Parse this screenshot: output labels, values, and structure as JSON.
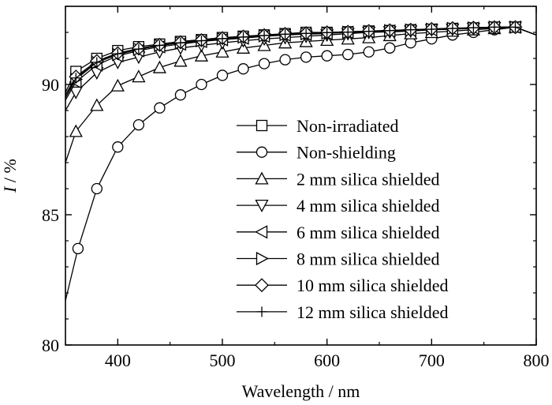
{
  "chart_data": {
    "type": "line",
    "xlabel": "Wavelength / nm",
    "ylabel_var": "I",
    "ylabel_unit": " / %",
    "xlim": [
      350,
      800
    ],
    "ylim": [
      80,
      93
    ],
    "x_ticks": [
      400,
      500,
      600,
      700,
      800
    ],
    "y_ticks": [
      80,
      85,
      90
    ],
    "grid": false,
    "legend_position": "center-right",
    "series": [
      {
        "name": "Non-irradiated",
        "marker": "square",
        "x": [
          350,
          360,
          380,
          400,
          420,
          440,
          460,
          480,
          500,
          520,
          540,
          560,
          580,
          600,
          620,
          640,
          660,
          680,
          700,
          720,
          740,
          760,
          780,
          800
        ],
        "y": [
          89.7,
          90.5,
          91.0,
          91.3,
          91.45,
          91.55,
          91.65,
          91.72,
          91.8,
          91.85,
          91.9,
          91.95,
          92.0,
          92.0,
          92.02,
          92.05,
          92.07,
          92.1,
          92.12,
          92.15,
          92.17,
          92.2,
          92.2,
          91.9
        ]
      },
      {
        "name": "Non-shielding",
        "marker": "circle",
        "x": [
          350,
          362,
          380,
          400,
          420,
          440,
          460,
          480,
          500,
          520,
          540,
          560,
          580,
          600,
          620,
          640,
          660,
          680,
          700,
          720,
          740,
          760,
          780,
          800
        ],
        "y": [
          81.7,
          83.7,
          86.0,
          87.6,
          88.45,
          89.1,
          89.6,
          90.0,
          90.35,
          90.6,
          90.8,
          90.95,
          91.05,
          91.1,
          91.15,
          91.25,
          91.4,
          91.6,
          91.75,
          91.9,
          92.0,
          92.1,
          92.2,
          91.9
        ]
      },
      {
        "name": "2 mm silica shielded",
        "marker": "triangle-up",
        "x": [
          350,
          360,
          380,
          400,
          420,
          440,
          460,
          480,
          500,
          520,
          540,
          560,
          580,
          600,
          620,
          640,
          660,
          680,
          700,
          720,
          740,
          760,
          780,
          800
        ],
        "y": [
          87.0,
          88.2,
          89.2,
          89.95,
          90.3,
          90.65,
          90.9,
          91.1,
          91.25,
          91.4,
          91.5,
          91.6,
          91.65,
          91.7,
          91.75,
          91.8,
          91.88,
          91.95,
          92.0,
          92.05,
          92.1,
          92.15,
          92.2,
          91.9
        ]
      },
      {
        "name": "4 mm silica shielded",
        "marker": "triangle-down",
        "x": [
          350,
          360,
          380,
          400,
          420,
          440,
          460,
          480,
          500,
          520,
          540,
          560,
          580,
          600,
          620,
          640,
          660,
          680,
          700,
          720,
          740,
          760,
          780,
          800
        ],
        "y": [
          89.0,
          89.7,
          90.45,
          90.85,
          91.05,
          91.25,
          91.4,
          91.5,
          91.6,
          91.68,
          91.75,
          91.8,
          91.85,
          91.9,
          91.95,
          92.0,
          92.02,
          92.05,
          92.1,
          92.12,
          92.15,
          92.18,
          92.2,
          91.9
        ]
      },
      {
        "name": "6 mm silica shielded",
        "marker": "triangle-left",
        "x": [
          350,
          360,
          380,
          400,
          420,
          440,
          460,
          480,
          500,
          520,
          540,
          560,
          580,
          600,
          620,
          640,
          660,
          680,
          700,
          720,
          740,
          760,
          780,
          800
        ],
        "y": [
          89.4,
          90.1,
          90.75,
          91.1,
          91.3,
          91.45,
          91.55,
          91.65,
          91.72,
          91.78,
          91.85,
          91.9,
          91.93,
          91.96,
          92.0,
          92.02,
          92.05,
          92.08,
          92.1,
          92.13,
          92.16,
          92.2,
          92.2,
          91.9
        ]
      },
      {
        "name": "8 mm silica shielded",
        "marker": "triangle-right",
        "x": [
          350,
          360,
          380,
          400,
          420,
          440,
          460,
          480,
          500,
          520,
          540,
          560,
          580,
          600,
          620,
          640,
          660,
          680,
          700,
          720,
          740,
          760,
          780,
          800
        ],
        "y": [
          89.5,
          90.2,
          90.85,
          91.15,
          91.35,
          91.5,
          91.6,
          91.68,
          91.75,
          91.82,
          91.87,
          91.92,
          91.95,
          91.98,
          92.0,
          92.03,
          92.06,
          92.09,
          92.12,
          92.15,
          92.17,
          92.2,
          92.2,
          91.9
        ]
      },
      {
        "name": "10 mm silica shielded",
        "marker": "diamond",
        "x": [
          350,
          360,
          380,
          400,
          420,
          440,
          460,
          480,
          500,
          520,
          540,
          560,
          580,
          600,
          620,
          640,
          660,
          680,
          700,
          720,
          740,
          760,
          780,
          800
        ],
        "y": [
          89.6,
          90.3,
          90.9,
          91.2,
          91.38,
          91.52,
          91.62,
          91.7,
          91.78,
          91.84,
          91.89,
          91.94,
          91.97,
          92.0,
          92.02,
          92.05,
          92.08,
          92.1,
          92.13,
          92.16,
          92.18,
          92.2,
          92.2,
          91.9
        ]
      },
      {
        "name": "12 mm silica shielded",
        "marker": "plus",
        "x": [
          350,
          360,
          380,
          400,
          420,
          440,
          460,
          480,
          500,
          520,
          540,
          560,
          580,
          600,
          620,
          640,
          660,
          680,
          700,
          720,
          740,
          760,
          780,
          800
        ],
        "y": [
          89.5,
          90.25,
          90.85,
          91.18,
          91.36,
          91.5,
          91.6,
          91.68,
          91.76,
          91.82,
          91.88,
          91.93,
          91.96,
          91.99,
          92.01,
          92.04,
          92.07,
          92.1,
          92.12,
          92.15,
          92.18,
          92.2,
          92.2,
          91.9
        ]
      }
    ]
  }
}
